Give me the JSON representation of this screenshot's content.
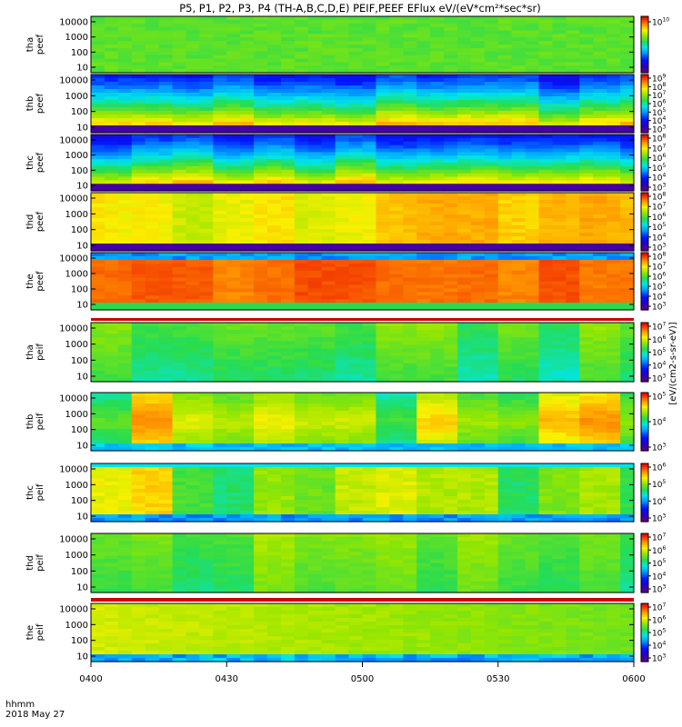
{
  "chart_data": {
    "type": "heatmap",
    "title": "P5, P1, P2, P3, P4 (TH-A,B,C,D,E) PEIF,PEEF EFlux eV/(eV*cm²*sec*sr)",
    "x_axis": {
      "ticks": [
        "0400",
        "0430",
        "0500",
        "0530",
        "0600"
      ],
      "label": "hhmm",
      "date": "2018 May 27"
    },
    "y_ticks": [
      "10000",
      "1000",
      "100",
      "10"
    ],
    "colorbar_title": "[eV/(cm2-s-sr-eV)]",
    "panels": [
      {
        "label": "tha\npeef",
        "cb": [
          10,
          10
        ],
        "pattern": "uniform-green"
      },
      {
        "label": "thb\npeef",
        "cb": [
          3,
          9
        ],
        "pattern": "electron-blue-top"
      },
      {
        "label": "thc\npeef",
        "cb": [
          3,
          8
        ],
        "pattern": "electron-blue-top"
      },
      {
        "label": "thd\npeef",
        "cb": [
          3,
          8
        ],
        "pattern": "electron-warm"
      },
      {
        "label": "the\npeef",
        "cb": [
          3,
          8
        ],
        "pattern": "electron-red"
      },
      {
        "label": "tha\npeif",
        "cb": [
          3,
          7
        ],
        "pattern": "ion-green"
      },
      {
        "label": "thb\npeif",
        "cb": [
          3,
          5
        ],
        "pattern": "ion-patchy"
      },
      {
        "label": "thc\npeif",
        "cb": [
          3,
          6
        ],
        "pattern": "ion-patchy2"
      },
      {
        "label": "thd\npeif",
        "cb": [
          3,
          7
        ],
        "pattern": "ion-green2"
      },
      {
        "label": "the\npeif",
        "cb": [
          3,
          7
        ],
        "pattern": "ion-yellow"
      }
    ]
  }
}
